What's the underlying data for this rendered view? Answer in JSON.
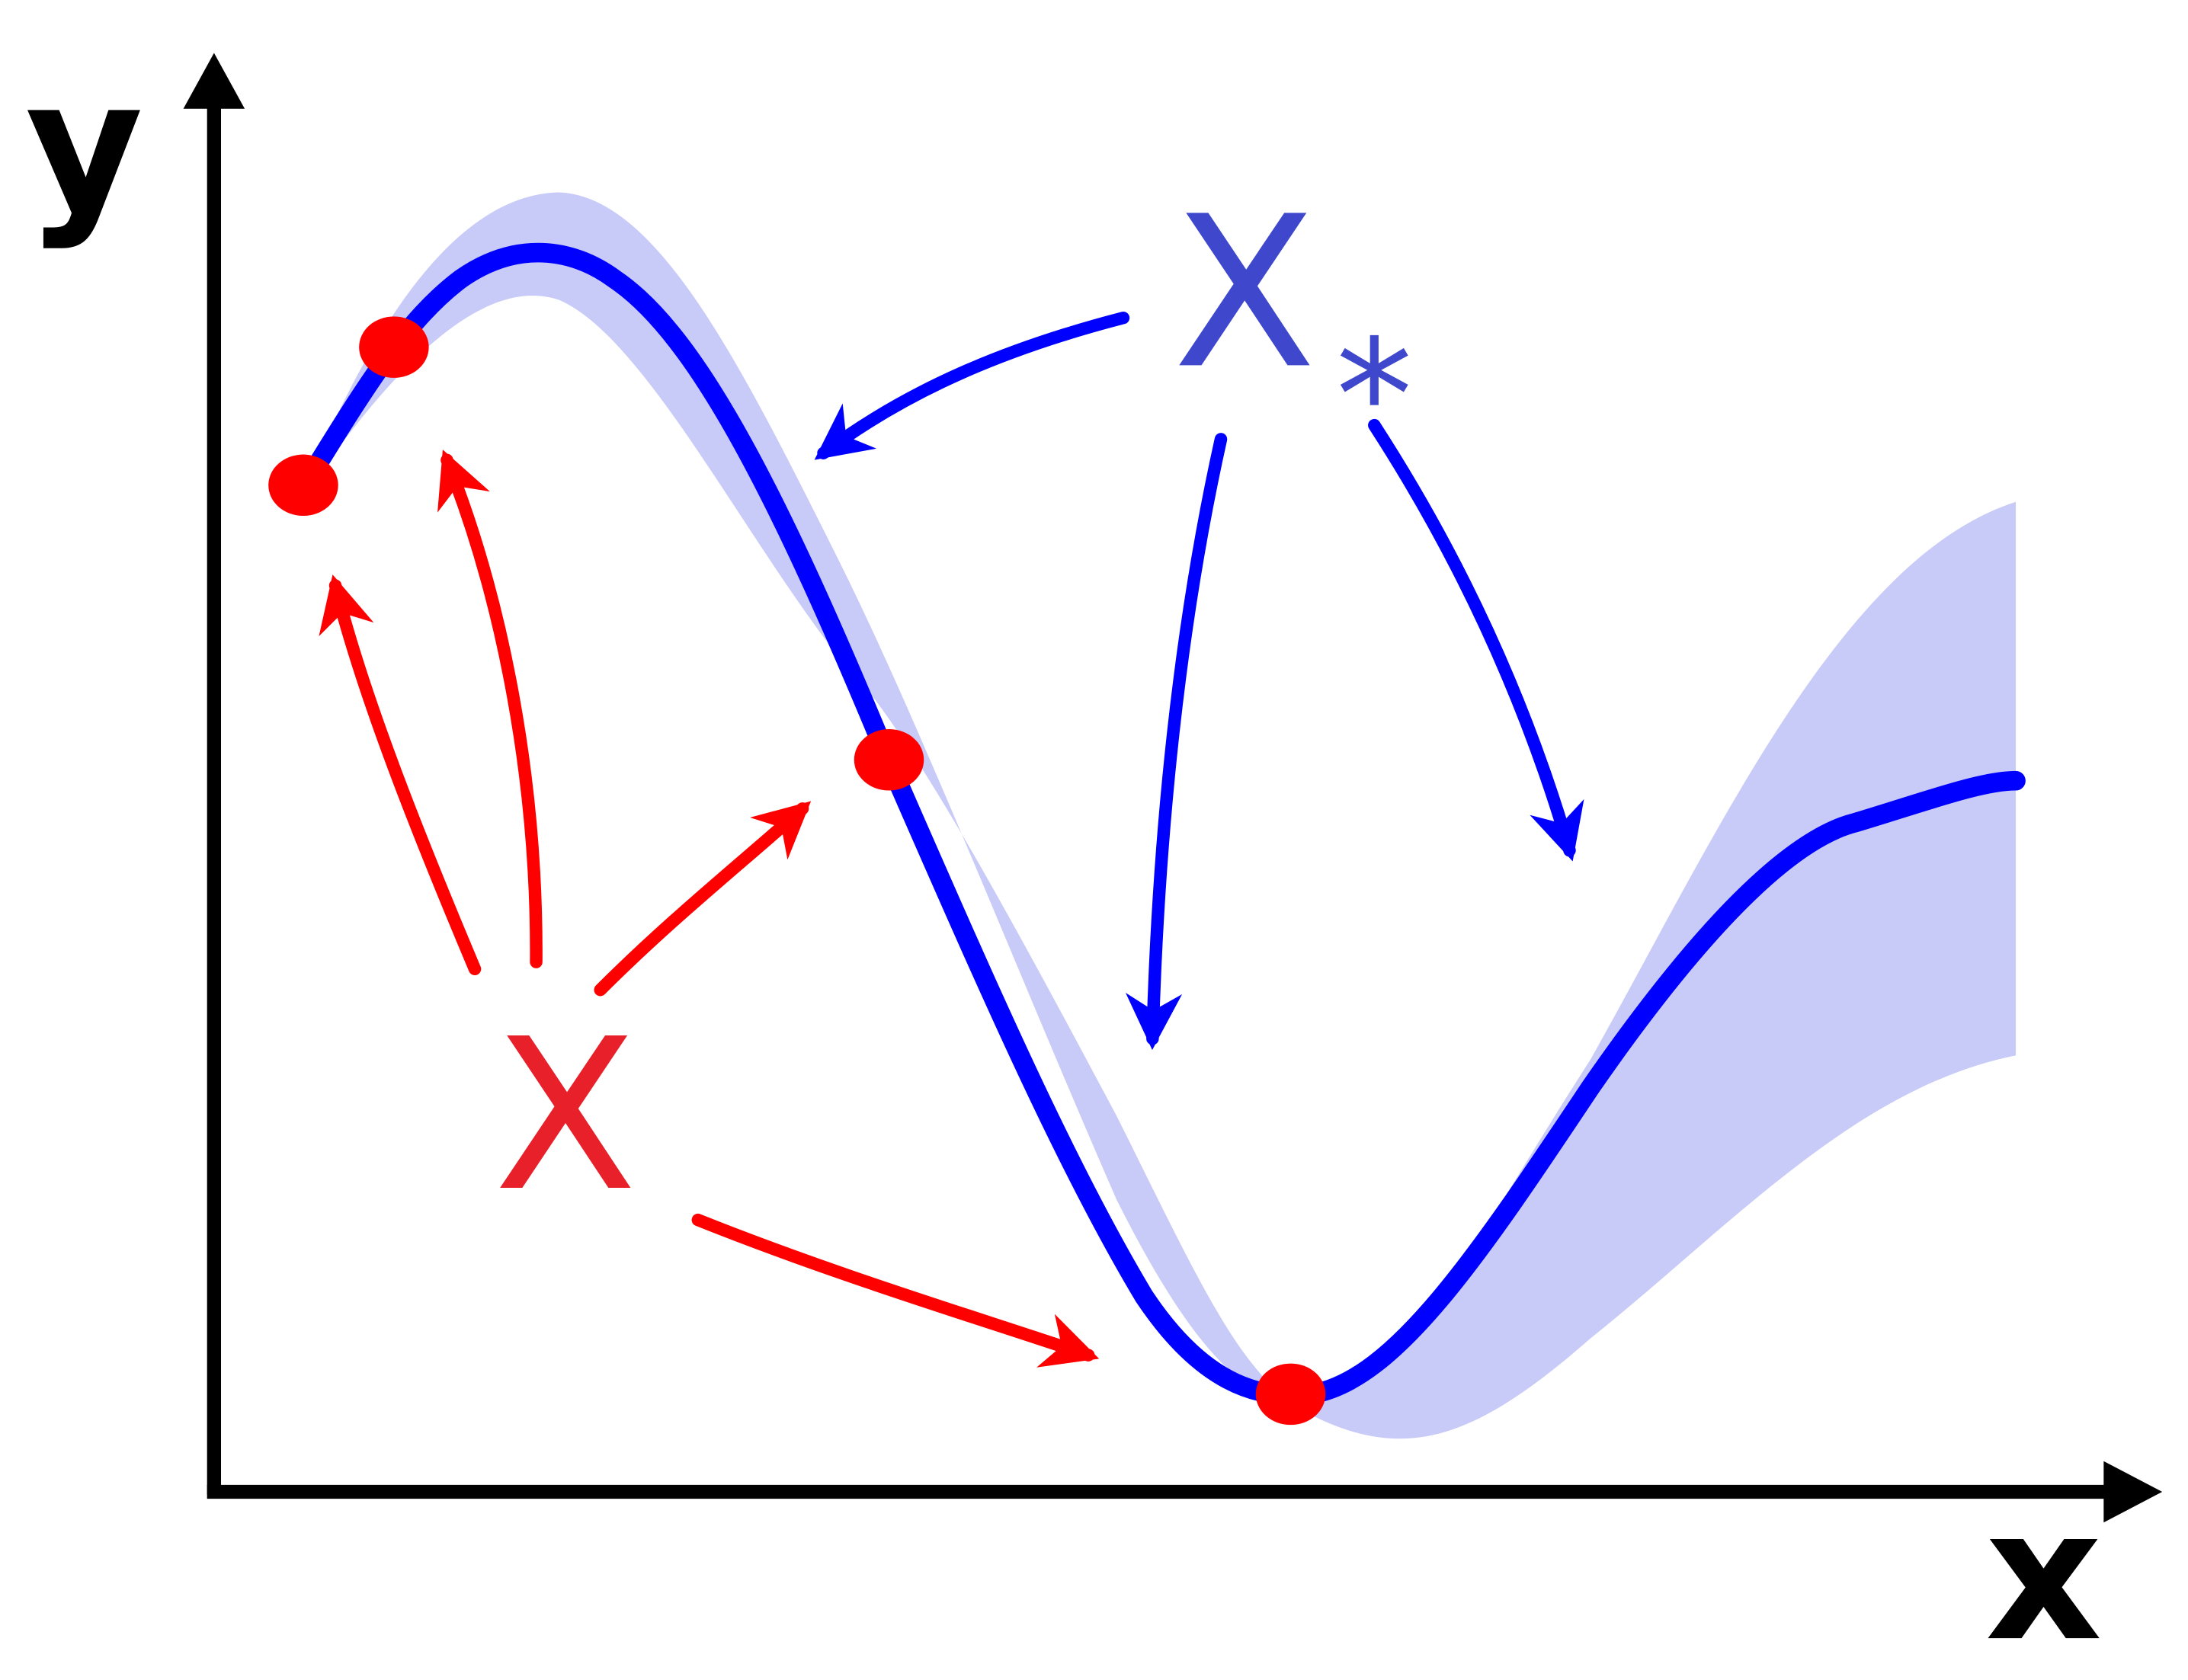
{
  "axes": {
    "x_label": "x",
    "y_label": "y"
  },
  "training_inputs": {
    "label": "X",
    "color": "#e8202a"
  },
  "test_inputs": {
    "label": "X",
    "subscript": "*",
    "color": "#3f48cc"
  },
  "colors": {
    "mean_curve": "#0000ff",
    "confidence_band": "#c8caf8",
    "training_points": "#ff0000",
    "red_arrows": "#ff0000",
    "blue_arrows": "#0000ff",
    "axes": "#000000"
  }
}
